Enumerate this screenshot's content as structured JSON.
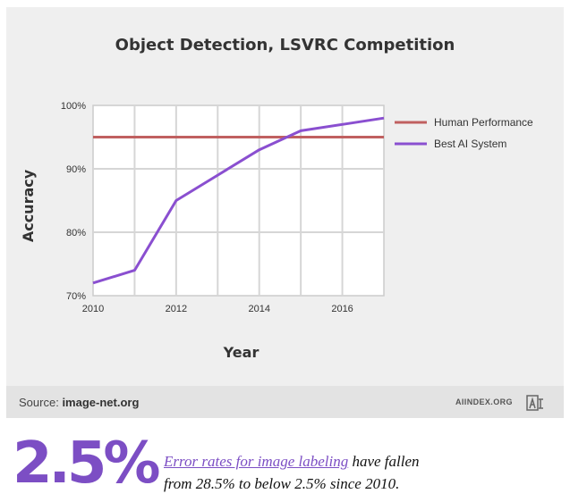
{
  "chart_data": {
    "type": "line",
    "title": "Object Detection, LSVRC Competition",
    "xlabel": "Year",
    "ylabel": "Accuracy",
    "xlim": [
      2010,
      2017
    ],
    "ylim": [
      70,
      100
    ],
    "x_ticks": [
      "2010",
      "2012",
      "2014",
      "2016"
    ],
    "y_ticks": [
      "70%",
      "80%",
      "90%",
      "100%"
    ],
    "grid": true,
    "legend_position": "right",
    "series": [
      {
        "name": "Human Performance",
        "color": "#c06060",
        "x": [
          2010,
          2017
        ],
        "y": [
          95,
          95
        ]
      },
      {
        "name": "Best AI System",
        "color": "#8a4fd0",
        "x": [
          2010,
          2011,
          2012,
          2013,
          2014,
          2015,
          2016,
          2017
        ],
        "y": [
          72,
          74,
          85,
          89,
          93,
          96,
          97,
          98
        ]
      }
    ]
  },
  "footer": {
    "source_label": "Source:",
    "source_value": "image-net.org",
    "brand": "AIINDEX.ORG"
  },
  "highlight": {
    "stat": "2.5%",
    "link_text": "Error rates for image labeling",
    "rest_line1": " have fallen",
    "line2": "from 28.5% to below 2.5% since 2010."
  },
  "colors": {
    "accent": "#7c4ec4",
    "card_bg": "#efefef",
    "footer_bg": "#e3e3e3"
  }
}
